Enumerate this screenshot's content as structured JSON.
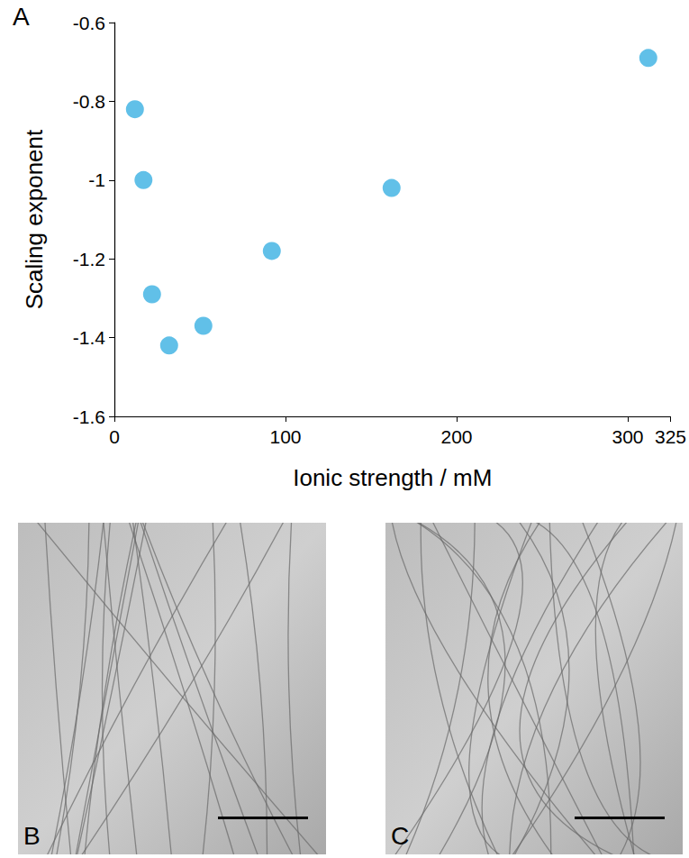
{
  "chart_data": {
    "type": "scatter",
    "panel": "A",
    "x_label": "Ionic strength / mM",
    "y_label": "Scaling exponent",
    "x": [
      12,
      17,
      22,
      32,
      52,
      92,
      162,
      312
    ],
    "values": [
      -0.82,
      -1.0,
      -1.29,
      -1.42,
      -1.37,
      -1.18,
      -1.02,
      -0.69
    ],
    "color": "#3ab0e2",
    "marker": "circle",
    "xlim": [
      0,
      325
    ],
    "xticks": [
      0,
      100,
      200,
      300
    ],
    "ylim": [
      -1.6,
      -0.6
    ],
    "yticks": [
      -1.6,
      -1.4,
      -1.2,
      -1,
      -0.8,
      -0.6
    ],
    "grid": false
  },
  "images": [
    {
      "panel": "B"
    },
    {
      "panel": "C"
    }
  ]
}
